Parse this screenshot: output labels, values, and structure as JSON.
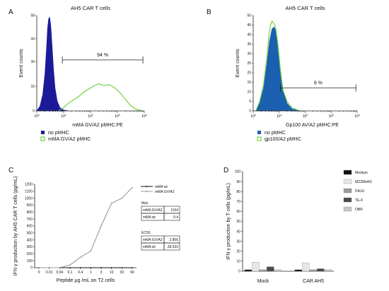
{
  "panels": {
    "A": "A",
    "B": "B",
    "C": "C",
    "D": "D"
  },
  "chart_data": [
    {
      "id": "A",
      "type": "area",
      "title": "AH5 CAR T cells",
      "xlabel": "mMA GV/A2 pMHC:PE",
      "ylabel": "Event counts",
      "x_scale": "log",
      "x_ticks": [
        {
          "v": 0,
          "base": "10",
          "exp": "0"
        },
        {
          "v": 1,
          "base": "10",
          "exp": "1"
        },
        {
          "v": 2,
          "base": "10",
          "exp": "2"
        },
        {
          "v": 3,
          "base": "10",
          "exp": "3"
        },
        {
          "v": 4,
          "base": "10",
          "exp": "4"
        }
      ],
      "ylim": [
        0,
        58
      ],
      "y_ticks": [
        "0",
        "15",
        "30",
        "44",
        "58"
      ],
      "gate": {
        "from_log": 0.95,
        "to_log": 3.95,
        "y": 31,
        "label": "94 %"
      },
      "series": [
        {
          "name": "no pMHC",
          "style": "filled",
          "color": "#1b1b9a",
          "points": [
            [
              0,
              0
            ],
            [
              0.12,
              3
            ],
            [
              0.22,
              10
            ],
            [
              0.3,
              22
            ],
            [
              0.36,
              38
            ],
            [
              0.4,
              50
            ],
            [
              0.44,
              56
            ],
            [
              0.48,
              57
            ],
            [
              0.52,
              52
            ],
            [
              0.56,
              42
            ],
            [
              0.62,
              26
            ],
            [
              0.68,
              14
            ],
            [
              0.76,
              6
            ],
            [
              0.86,
              2
            ],
            [
              1.0,
              0.5
            ],
            [
              1.2,
              0
            ]
          ]
        },
        {
          "name": "mMA GV/A2 pMHC",
          "style": "outline",
          "color": "#66cc33",
          "points": [
            [
              0.8,
              0
            ],
            [
              1.0,
              2
            ],
            [
              1.2,
              5
            ],
            [
              1.5,
              8
            ],
            [
              1.8,
              12
            ],
            [
              2.1,
              15
            ],
            [
              2.3,
              16.5
            ],
            [
              2.5,
              15.5
            ],
            [
              2.7,
              16
            ],
            [
              2.9,
              14
            ],
            [
              3.1,
              11
            ],
            [
              3.3,
              7
            ],
            [
              3.5,
              3
            ],
            [
              3.7,
              1
            ],
            [
              3.9,
              0
            ]
          ]
        }
      ],
      "legend": [
        "no pMHC",
        "mMA GV/A2 pMHC"
      ]
    },
    {
      "id": "B",
      "type": "area",
      "title": "AH5 CAR T cells",
      "xlabel": "Gp100 AV/A2 pMHC:PE",
      "ylabel": "Event counts",
      "x_scale": "log",
      "x_ticks": [
        {
          "v": 0,
          "base": "10",
          "exp": "0"
        },
        {
          "v": 1,
          "base": "10",
          "exp": "1"
        },
        {
          "v": 2,
          "base": "10",
          "exp": "2"
        },
        {
          "v": 3,
          "base": "10",
          "exp": "3"
        },
        {
          "v": 4,
          "base": "10",
          "exp": "4"
        }
      ],
      "ylim": [
        0,
        50
      ],
      "y_ticks": [
        "0",
        "5",
        "10",
        "15",
        "20",
        "25",
        "30",
        "35",
        "40",
        "45",
        "50"
      ],
      "gate": {
        "from_log": 1.05,
        "to_log": 3.95,
        "y": 12,
        "label": "8 %"
      },
      "series": [
        {
          "name": "no pMHC",
          "style": "filled",
          "color": "#1b5fb0",
          "points": [
            [
              0.1,
              0
            ],
            [
              0.25,
              4
            ],
            [
              0.4,
              12
            ],
            [
              0.52,
              24
            ],
            [
              0.62,
              36
            ],
            [
              0.72,
              43
            ],
            [
              0.8,
              44
            ],
            [
              0.88,
              42
            ],
            [
              0.96,
              34
            ],
            [
              1.06,
              20
            ],
            [
              1.16,
              10
            ],
            [
              1.3,
              4
            ],
            [
              1.5,
              1
            ],
            [
              1.8,
              0
            ]
          ]
        },
        {
          "name": "gp100/A2 pMHC",
          "style": "outline",
          "color": "#66cc33",
          "points": [
            [
              0.1,
              0
            ],
            [
              0.25,
              5
            ],
            [
              0.4,
              14
            ],
            [
              0.52,
              27
            ],
            [
              0.6,
              39
            ],
            [
              0.66,
              45
            ],
            [
              0.72,
              47
            ],
            [
              0.78,
              46
            ],
            [
              0.86,
              44
            ],
            [
              0.94,
              36
            ],
            [
              1.04,
              22
            ],
            [
              1.14,
              11
            ],
            [
              1.3,
              5
            ],
            [
              1.5,
              1.5
            ],
            [
              1.8,
              0
            ]
          ]
        }
      ],
      "legend": [
        "no pMHC",
        "gp100/A2 pMHC"
      ]
    },
    {
      "id": "C",
      "type": "line",
      "xlabel": "Peptide μg /mL on T2 cells",
      "ylabel": "IFN γ production by AH5 CAR T cells (pg/mL)",
      "categories": [
        "0",
        "0.01",
        "0.04",
        "0.1",
        "0.4",
        "1",
        "3",
        "10",
        "30",
        "90"
      ],
      "ylim": [
        0,
        1200
      ],
      "y_ticks": [
        0,
        100,
        200,
        300,
        400,
        500,
        600,
        700,
        800,
        900,
        1000,
        1100,
        1200
      ],
      "series": [
        {
          "name": "mMA wt",
          "color": "#111111",
          "values": [
            0,
            0,
            0,
            0,
            0,
            0,
            0,
            0,
            0,
            0
          ]
        },
        {
          "name": "mMA GV/A2",
          "color": "#999999",
          "values": [
            0,
            0,
            0,
            40,
            150,
            240,
            600,
            930,
            1000,
            1154
          ]
        }
      ],
      "legend": [
        "mMA wt",
        "mMA GV/A2"
      ],
      "tables": [
        {
          "title": "Max",
          "rows": [
            [
              "mMA GV/A2",
              "1154"
            ],
            [
              "mMA wt",
              "9.4"
            ]
          ]
        },
        {
          "title": "EC50",
          "rows": [
            [
              "mMA GV/A2",
              "2.856"
            ],
            [
              "mMA wt",
              "28.533"
            ]
          ]
        }
      ]
    },
    {
      "id": "D",
      "type": "bar",
      "ylabel": "IFN  γ production by T cells (pg/mL)",
      "categories": [
        "Mock",
        "CAR AH5"
      ],
      "ylim": [
        0,
        100
      ],
      "y_ticks": [
        0,
        10,
        20,
        30,
        40,
        50,
        60,
        70,
        80,
        90,
        100
      ],
      "series": [
        {
          "name": "Medium",
          "color": "#111111",
          "values": [
            1.5,
            1.5
          ]
        },
        {
          "name": "MZ2Mel43",
          "color": "#e6e6ea",
          "values": [
            9,
            8.5
          ]
        },
        {
          "name": "DAJU",
          "color": "#9a9a9a",
          "values": [
            1.5,
            1.5
          ]
        },
        {
          "name": "TE-4",
          "color": "#4a4a4a",
          "values": [
            4.5,
            2.5
          ]
        },
        {
          "name": "OBR",
          "color": "#c8c8c8",
          "values": [
            1.5,
            1.5
          ]
        }
      ],
      "legend": [
        "Medium",
        "MZ2Mel43",
        "DAJU",
        "TE-4",
        "OBR"
      ]
    }
  ]
}
